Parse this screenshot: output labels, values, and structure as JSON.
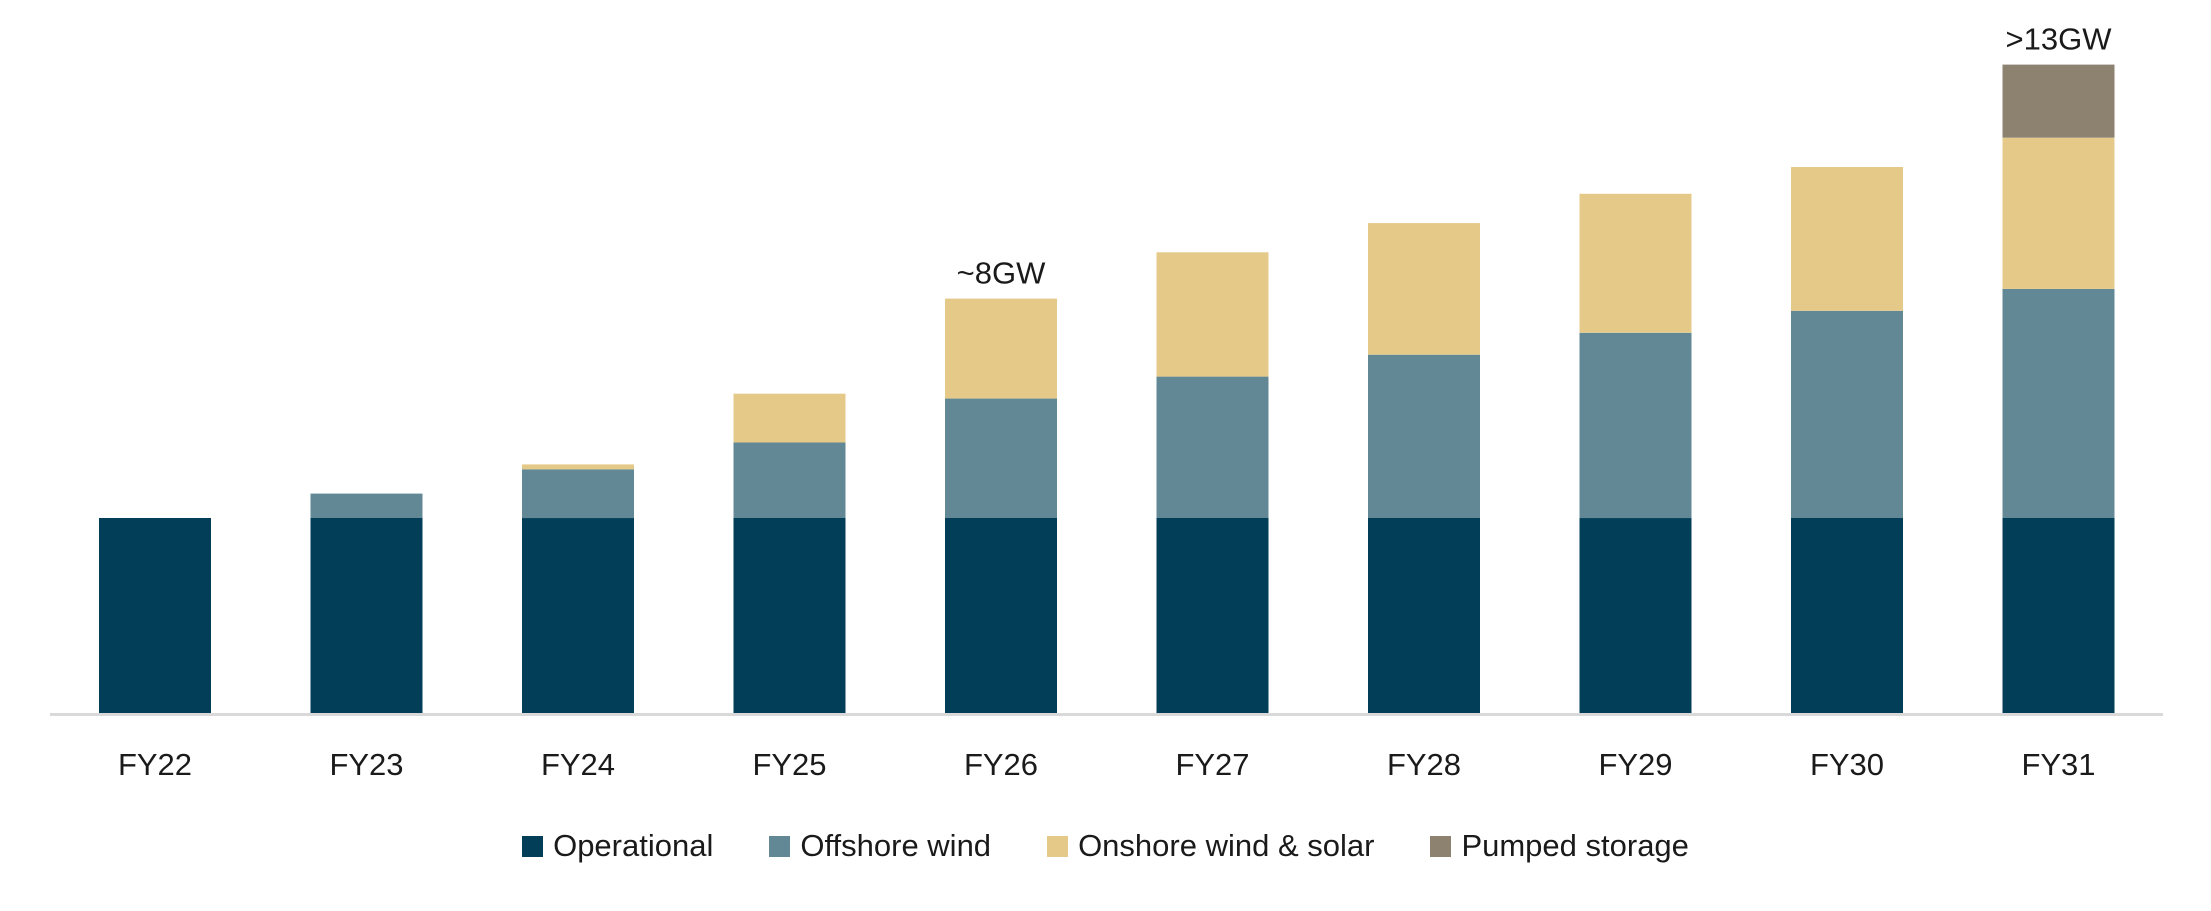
{
  "chart_data": {
    "type": "bar",
    "stacked": true,
    "title": "",
    "xlabel": "",
    "ylabel": "",
    "ylim": [
      0,
      13.6
    ],
    "grid": false,
    "legend_position": "bottom-center",
    "categories": [
      "FY22",
      "FY23",
      "FY24",
      "FY25",
      "FY26",
      "FY27",
      "FY28",
      "FY29",
      "FY30",
      "FY31"
    ],
    "series": [
      {
        "name": "Operational",
        "color": "#033e58",
        "values": [
          4.0,
          4.0,
          4.0,
          4.0,
          4.0,
          4.0,
          4.0,
          4.0,
          4.0,
          4.0
        ]
      },
      {
        "name": "Offshore wind",
        "color": "#628895",
        "values": [
          0.0,
          0.5,
          1.0,
          1.55,
          2.45,
          2.9,
          3.35,
          3.8,
          4.25,
          4.7
        ]
      },
      {
        "name": "Onshore wind & solar",
        "color": "#e5c989",
        "values": [
          0.0,
          0.0,
          0.1,
          1.0,
          2.05,
          2.55,
          2.7,
          2.85,
          2.95,
          3.1
        ]
      },
      {
        "name": "Pumped storage",
        "color": "#8d8270",
        "values": [
          0.0,
          0.0,
          0.0,
          0.0,
          0.0,
          0.0,
          0.0,
          0.0,
          0.0,
          1.5
        ]
      }
    ],
    "annotations": [
      {
        "category": "FY26",
        "text": "~8GW"
      },
      {
        "category": "FY31",
        "text": ">13GW"
      }
    ]
  },
  "legend": {
    "items": [
      {
        "label": "Operational",
        "color": "#033e58"
      },
      {
        "label": "Offshore wind",
        "color": "#628895"
      },
      {
        "label": "Onshore wind & solar",
        "color": "#e5c989"
      },
      {
        "label": "Pumped storage",
        "color": "#8d8270"
      }
    ]
  },
  "colors": {
    "axis_line": "#d9d9d9",
    "text": "#1a1a1a"
  }
}
